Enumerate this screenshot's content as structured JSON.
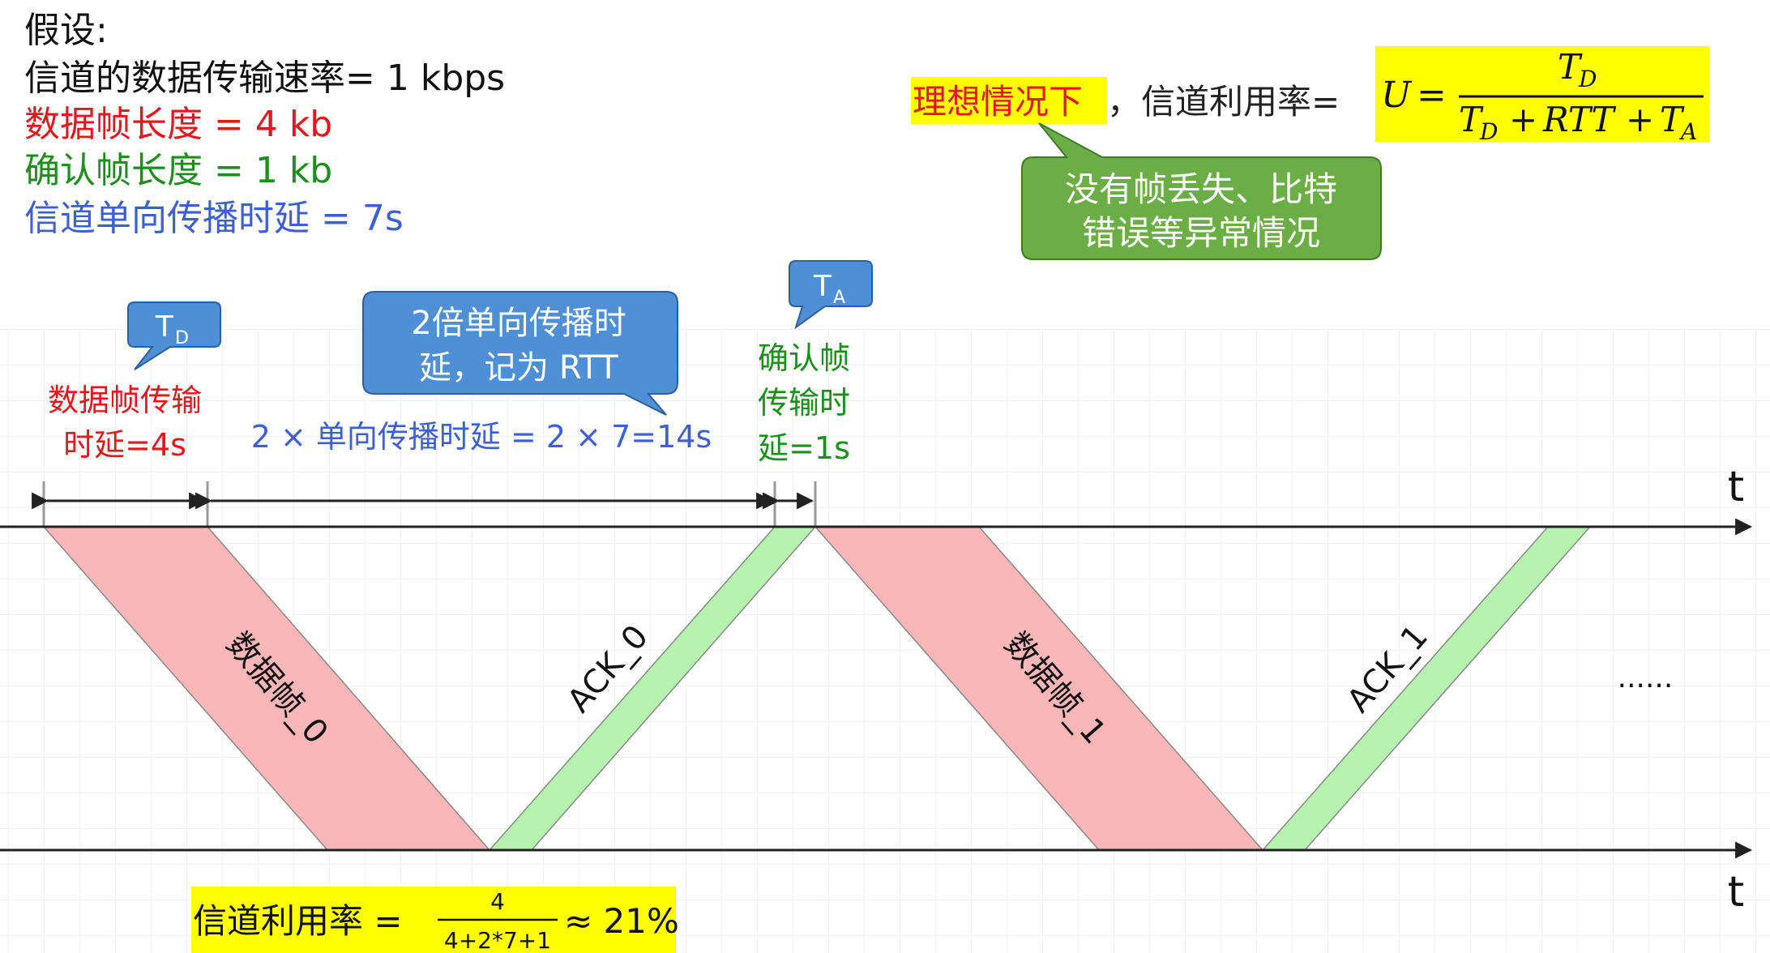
{
  "assumptions": {
    "heading": "假设:",
    "rate": "信道的数据传输速率= 1 kbps",
    "data_frame": "数据帧长度 = 4 kb",
    "ack_frame": "确认帧长度 = 1 kb",
    "prop_delay": "信道单向传播时延 = 7s"
  },
  "ideal": {
    "highlight": "理想情况下",
    "text": "，信道利用率=",
    "formula": {
      "lhs": "U",
      "eq": "=",
      "num_main": "T",
      "num_sub": "D",
      "den_t1": "T",
      "den_t1_sub": "D",
      "den_plus1": "+",
      "den_rtt": "RTT",
      "den_plus2": "+",
      "den_t2": "T",
      "den_t2_sub": "A"
    },
    "callout_line1": "没有帧丢失、比特",
    "callout_line2": "错误等异常情况"
  },
  "bubbles": {
    "td_main": "T",
    "td_sub": "D",
    "ta_main": "T",
    "ta_sub": "A",
    "rtt_line1": "2倍单向传播时",
    "rtt_line2": "延，记为 RTT"
  },
  "labels": {
    "data_trans_line1": "数据帧传输",
    "data_trans_line2": "时延=4s",
    "prop_2x": "2 × 单向传播时延 = 2 × 7=14s",
    "ack_line1": "确认帧",
    "ack_line2": "传输时",
    "ack_line3": "延=1s",
    "t_top": "t",
    "t_bottom": "t",
    "frame0": "数据帧_0",
    "ack0": "ACK_0",
    "frame1": "数据帧_1",
    "ack1": "ACK_1",
    "ellipsis": "......"
  },
  "result": {
    "lhs": "信道利用率 =",
    "num": "4",
    "den": "4+2*7+1",
    "approx": "≈ 21%"
  },
  "colors": {
    "red_text": "#e8161c",
    "green_text": "#1a8f1a",
    "blue_text": "#3d5fd6",
    "data_fill": "#fbb7b7",
    "ack_fill": "#b6f2b0",
    "highlight": "#ffff00",
    "bubble_blue": "#4f8fd6",
    "bubble_green": "#6bae46"
  }
}
